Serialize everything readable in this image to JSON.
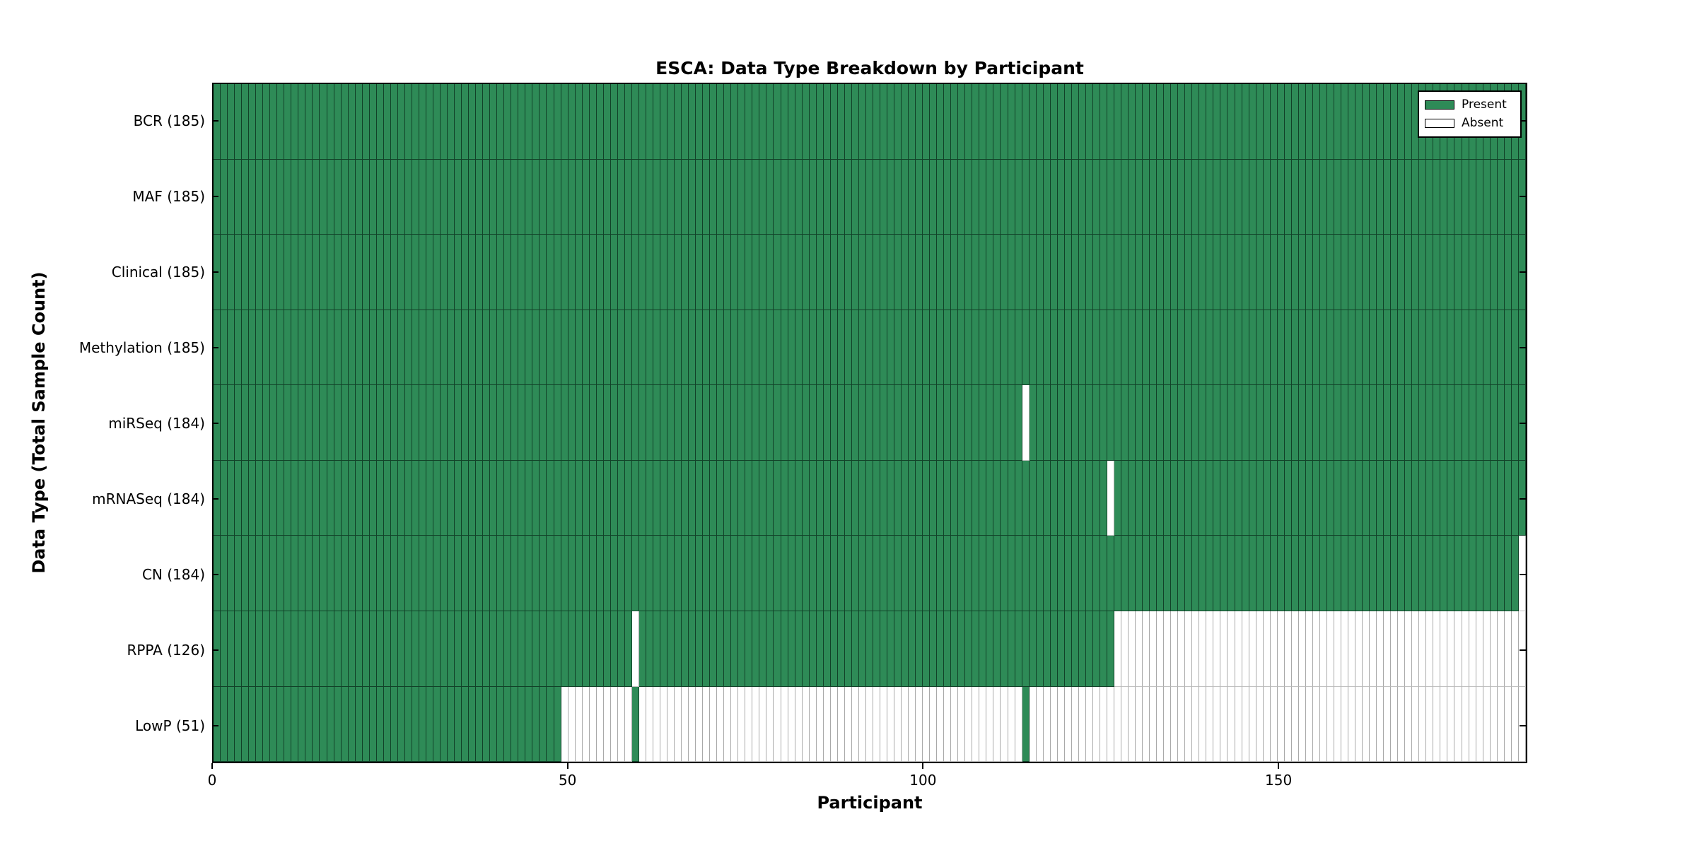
{
  "chart_data": {
    "type": "heatmap",
    "title": "ESCA: Data Type Breakdown by Participant",
    "xlabel": "Participant",
    "ylabel": "Data Type (Total Sample Count)",
    "n_participants": 185,
    "xlim": [
      0,
      185
    ],
    "x_ticks": [
      0,
      50,
      100,
      150
    ],
    "grid": false,
    "legend_position": "upper-right",
    "colors": {
      "present": "#2e8b57",
      "absent": "#ffffff",
      "axis": "#000000"
    },
    "legend": [
      {
        "label": "Present",
        "color": "#2e8b57"
      },
      {
        "label": "Absent",
        "color": "#ffffff"
      }
    ],
    "rows": [
      {
        "name": "bcr",
        "label": "BCR (185)",
        "total": 185,
        "present_ranges": [
          [
            0,
            184
          ]
        ]
      },
      {
        "name": "maf",
        "label": "MAF (185)",
        "total": 185,
        "present_ranges": [
          [
            0,
            184
          ]
        ]
      },
      {
        "name": "clinical",
        "label": "Clinical (185)",
        "total": 185,
        "present_ranges": [
          [
            0,
            184
          ]
        ]
      },
      {
        "name": "methylation",
        "label": "Methylation (185)",
        "total": 185,
        "present_ranges": [
          [
            0,
            184
          ]
        ]
      },
      {
        "name": "mirseq",
        "label": "miRSeq (184)",
        "total": 184,
        "present_ranges": [
          [
            0,
            113
          ],
          [
            115,
            184
          ]
        ]
      },
      {
        "name": "mrnaseq",
        "label": "mRNASeq (184)",
        "total": 184,
        "present_ranges": [
          [
            0,
            125
          ],
          [
            127,
            184
          ]
        ]
      },
      {
        "name": "cn",
        "label": "CN (184)",
        "total": 184,
        "present_ranges": [
          [
            0,
            183
          ]
        ]
      },
      {
        "name": "rppa",
        "label": "RPPA (126)",
        "total": 126,
        "present_ranges": [
          [
            0,
            58
          ],
          [
            60,
            126
          ]
        ]
      },
      {
        "name": "lowp",
        "label": "LowP (51)",
        "total": 51,
        "present_ranges": [
          [
            0,
            48
          ],
          [
            59,
            59
          ],
          [
            114,
            114
          ]
        ]
      }
    ]
  }
}
